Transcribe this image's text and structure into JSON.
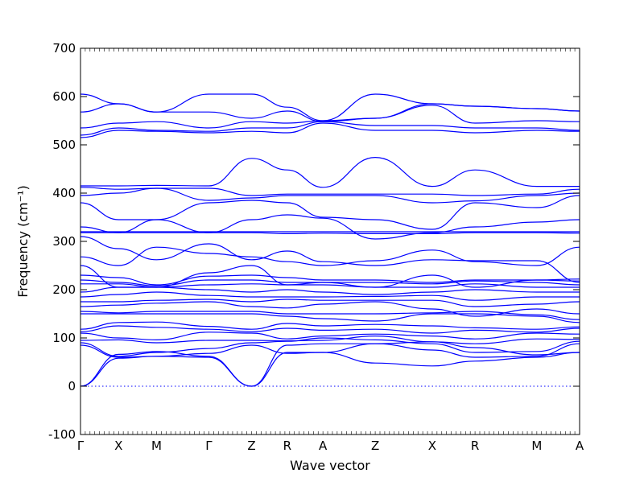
{
  "chart_data": {
    "type": "line",
    "title": "",
    "xlabel": "Wave vector",
    "ylabel": "Frequency (cm⁻¹)",
    "ylim": [
      -100,
      700
    ],
    "yticks": [
      -100,
      0,
      100,
      200,
      300,
      400,
      500,
      600,
      700
    ],
    "xlim": [
      0,
      10.5
    ],
    "high_symmetry_points": [
      {
        "label": "Γ",
        "x": 0
      },
      {
        "label": "X",
        "x": 0.8
      },
      {
        "label": "M",
        "x": 1.6
      },
      {
        "label": "Γ",
        "x": 2.7
      },
      {
        "label": "Z",
        "x": 3.6
      },
      {
        "label": "R",
        "x": 4.35
      },
      {
        "label": "A",
        "x": 5.1
      },
      {
        "label": "Z",
        "x": 6.2
      },
      {
        "label": "X",
        "x": 7.4
      },
      {
        "label": "R",
        "x": 8.3
      },
      {
        "label": "M",
        "x": 9.6
      },
      {
        "label": "A",
        "x": 10.5
      }
    ],
    "zero_line": {
      "y": 0,
      "style": "dotted"
    },
    "line_color": "#0000ff",
    "grid": false,
    "bands": [
      [
        0,
        58,
        62,
        60,
        0,
        85,
        88,
        88,
        92,
        80,
        65,
        70,
        50
      ],
      [
        0,
        66,
        72,
        62,
        0,
        70,
        70,
        48,
        42,
        52,
        60,
        70,
        75
      ],
      [
        85,
        60,
        62,
        68,
        85,
        68,
        70,
        88,
        75,
        60,
        62,
        88,
        95
      ],
      [
        90,
        62,
        70,
        78,
        90,
        93,
        100,
        96,
        88,
        70,
        72,
        93,
        100
      ],
      [
        95,
        96,
        90,
        95,
        95,
        94,
        95,
        104,
        92,
        88,
        98,
        97,
        110
      ],
      [
        110,
        100,
        96,
        112,
        110,
        98,
        104,
        108,
        104,
        98,
        110,
        108,
        125
      ],
      [
        113,
        125,
        122,
        118,
        113,
        120,
        116,
        118,
        110,
        116,
        112,
        120,
        135
      ],
      [
        118,
        132,
        133,
        124,
        118,
        130,
        125,
        128,
        125,
        121,
        118,
        123,
        140
      ],
      [
        150,
        150,
        150,
        150,
        150,
        145,
        140,
        135,
        150,
        150,
        145,
        132,
        145
      ],
      [
        155,
        152,
        155,
        155,
        155,
        150,
        150,
        150,
        152,
        155,
        148,
        138,
        150
      ],
      [
        165,
        168,
        172,
        175,
        165,
        162,
        170,
        175,
        160,
        145,
        160,
        150,
        160
      ],
      [
        175,
        175,
        178,
        180,
        175,
        180,
        178,
        178,
        178,
        165,
        170,
        175,
        170
      ],
      [
        185,
        190,
        195,
        188,
        185,
        185,
        185,
        186,
        188,
        178,
        185,
        185,
        182
      ],
      [
        195,
        205,
        205,
        200,
        195,
        200,
        195,
        190,
        195,
        200,
        195,
        195,
        188
      ],
      [
        212,
        212,
        205,
        210,
        212,
        210,
        210,
        205,
        205,
        212,
        205,
        205,
        200
      ],
      [
        220,
        215,
        208,
        220,
        220,
        215,
        215,
        215,
        212,
        218,
        215,
        210,
        210
      ],
      [
        230,
        225,
        210,
        228,
        230,
        225,
        220,
        220,
        215,
        220,
        220,
        218,
        215
      ],
      [
        250,
        205,
        205,
        235,
        250,
        210,
        215,
        205,
        230,
        205,
        220,
        222,
        255
      ],
      [
        268,
        250,
        288,
        275,
        268,
        258,
        250,
        260,
        282,
        258,
        250,
        288,
        258
      ],
      [
        310,
        285,
        262,
        295,
        262,
        280,
        258,
        250,
        262,
        260,
        260,
        215,
        215
      ],
      [
        318,
        318,
        318,
        318,
        318,
        316,
        317,
        316,
        316,
        318,
        318,
        317,
        318
      ],
      [
        320,
        320,
        320,
        320,
        320,
        320,
        320,
        320,
        320,
        320,
        320,
        320,
        320
      ],
      [
        330,
        318,
        345,
        318,
        345,
        355,
        348,
        305,
        318,
        330,
        340,
        345,
        350
      ],
      [
        380,
        345,
        345,
        380,
        385,
        380,
        350,
        345,
        325,
        380,
        370,
        395,
        398
      ],
      [
        395,
        400,
        410,
        385,
        390,
        395,
        395,
        395,
        380,
        384,
        395,
        400,
        398
      ],
      [
        412,
        408,
        410,
        410,
        395,
        398,
        398,
        398,
        398,
        395,
        398,
        408,
        400
      ],
      [
        415,
        415,
        416,
        415,
        472,
        448,
        412,
        474,
        414,
        448,
        414,
        414,
        414
      ],
      [
        515,
        530,
        528,
        525,
        528,
        525,
        545,
        530,
        530,
        525,
        530,
        528,
        545
      ],
      [
        520,
        535,
        530,
        528,
        535,
        535,
        548,
        540,
        540,
        535,
        535,
        530,
        548
      ],
      [
        535,
        545,
        548,
        535,
        548,
        545,
        550,
        555,
        582,
        545,
        550,
        548,
        550
      ],
      [
        568,
        585,
        568,
        568,
        555,
        570,
        548,
        555,
        585,
        580,
        575,
        570,
        552
      ],
      [
        605,
        585,
        568,
        605,
        605,
        578,
        550,
        605,
        585,
        580,
        575,
        570,
        552
      ]
    ]
  }
}
